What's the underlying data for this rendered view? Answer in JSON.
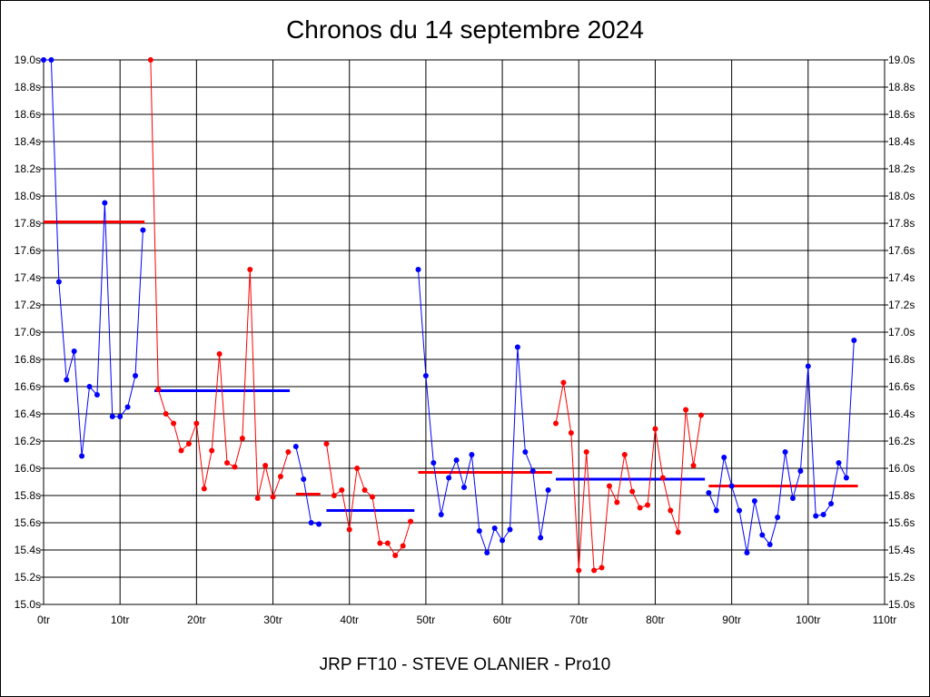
{
  "chart_data": {
    "type": "line",
    "title": "Chronos du 14 septembre 2024",
    "subtitle": "JRP FT10 - STEVE OLANIER - Pro10",
    "xlim": [
      0,
      110
    ],
    "ylim": [
      15.0,
      19.0
    ],
    "x_ticks": [
      {
        "value": 0,
        "label": "0tr"
      },
      {
        "value": 10,
        "label": "10tr"
      },
      {
        "value": 20,
        "label": "20tr"
      },
      {
        "value": 30,
        "label": "30tr"
      },
      {
        "value": 40,
        "label": "40tr"
      },
      {
        "value": 50,
        "label": "50tr"
      },
      {
        "value": 60,
        "label": "60tr"
      },
      {
        "value": 70,
        "label": "70tr"
      },
      {
        "value": 80,
        "label": "80tr"
      },
      {
        "value": 90,
        "label": "90tr"
      },
      {
        "value": 100,
        "label": "100tr"
      },
      {
        "value": 110,
        "label": "110tr"
      }
    ],
    "y_ticks": [
      {
        "value": 19.0,
        "label": "19.0s"
      },
      {
        "value": 18.8,
        "label": "18.8s"
      },
      {
        "value": 18.6,
        "label": "18.6s"
      },
      {
        "value": 18.4,
        "label": "18.4s"
      },
      {
        "value": 18.2,
        "label": "18.2s"
      },
      {
        "value": 18.0,
        "label": "18.0s"
      },
      {
        "value": 17.8,
        "label": "17.8s"
      },
      {
        "value": 17.6,
        "label": "17.6s"
      },
      {
        "value": 17.4,
        "label": "17.4s"
      },
      {
        "value": 17.2,
        "label": "17.2s"
      },
      {
        "value": 17.0,
        "label": "17.0s"
      },
      {
        "value": 16.8,
        "label": "16.8s"
      },
      {
        "value": 16.6,
        "label": "16.6s"
      },
      {
        "value": 16.4,
        "label": "16.4s"
      },
      {
        "value": 16.2,
        "label": "16.2s"
      },
      {
        "value": 16.0,
        "label": "16.0s"
      },
      {
        "value": 15.8,
        "label": "15.8s"
      },
      {
        "value": 15.6,
        "label": "15.6s"
      },
      {
        "value": 15.4,
        "label": "15.4s"
      },
      {
        "value": 15.2,
        "label": "15.2s"
      },
      {
        "value": 15.0,
        "label": "15.0s"
      }
    ],
    "grid": true,
    "series": [
      {
        "color": "#0000ff",
        "points": [
          [
            0,
            19.0
          ],
          [
            1,
            19.0
          ],
          [
            2,
            17.37
          ],
          [
            3,
            16.65
          ],
          [
            4,
            16.86
          ],
          [
            5,
            16.09
          ],
          [
            6,
            16.6
          ],
          [
            7,
            16.54
          ],
          [
            8,
            17.95
          ],
          [
            9,
            16.38
          ],
          [
            10,
            16.38
          ],
          [
            11,
            16.45
          ],
          [
            12,
            16.68
          ],
          [
            13,
            17.75
          ]
        ]
      },
      {
        "color": "#ff0000",
        "points": [
          [
            14,
            19.0
          ],
          [
            15,
            16.58
          ],
          [
            16,
            16.4
          ],
          [
            17,
            16.33
          ],
          [
            18,
            16.13
          ],
          [
            19,
            16.18
          ],
          [
            20,
            16.33
          ],
          [
            21,
            15.85
          ],
          [
            22,
            16.13
          ],
          [
            23,
            16.84
          ],
          [
            24,
            16.04
          ],
          [
            25,
            16.01
          ],
          [
            26,
            16.22
          ],
          [
            27,
            17.46
          ],
          [
            28,
            15.78
          ],
          [
            29,
            16.02
          ],
          [
            30,
            15.79
          ],
          [
            31,
            15.94
          ],
          [
            32,
            16.12
          ]
        ]
      },
      {
        "color": "#0000ff",
        "points": [
          [
            33,
            16.16
          ],
          [
            34,
            15.92
          ],
          [
            35,
            15.6
          ],
          [
            36,
            15.59
          ]
        ]
      },
      {
        "color": "#ff0000",
        "points": [
          [
            37,
            16.18
          ],
          [
            38,
            15.8
          ],
          [
            39,
            15.84
          ],
          [
            40,
            15.55
          ],
          [
            41,
            16.0
          ],
          [
            42,
            15.84
          ],
          [
            43,
            15.79
          ],
          [
            44,
            15.45
          ],
          [
            45,
            15.45
          ],
          [
            46,
            15.36
          ],
          [
            47,
            15.43
          ],
          [
            48,
            15.61
          ]
        ]
      },
      {
        "color": "#0000ff",
        "points": [
          [
            49,
            17.46
          ],
          [
            50,
            16.68
          ],
          [
            51,
            16.04
          ],
          [
            52,
            15.66
          ],
          [
            53,
            15.93
          ],
          [
            54,
            16.06
          ],
          [
            55,
            15.86
          ],
          [
            56,
            16.1
          ],
          [
            57,
            15.54
          ],
          [
            58,
            15.38
          ],
          [
            59,
            15.56
          ],
          [
            60,
            15.47
          ],
          [
            61,
            15.55
          ],
          [
            62,
            16.89
          ],
          [
            63,
            16.12
          ],
          [
            64,
            15.98
          ],
          [
            65,
            15.49
          ],
          [
            66,
            15.84
          ]
        ]
      },
      {
        "color": "#ff0000",
        "points": [
          [
            67,
            16.33
          ],
          [
            68,
            16.63
          ],
          [
            69,
            16.26
          ],
          [
            70,
            15.25
          ],
          [
            71,
            16.12
          ],
          [
            72,
            15.25
          ],
          [
            73,
            15.27
          ],
          [
            74,
            15.87
          ],
          [
            75,
            15.75
          ],
          [
            76,
            16.1
          ],
          [
            77,
            15.83
          ],
          [
            78,
            15.71
          ],
          [
            79,
            15.73
          ],
          [
            80,
            16.29
          ],
          [
            81,
            15.93
          ],
          [
            82,
            15.69
          ],
          [
            83,
            15.53
          ],
          [
            84,
            16.43
          ],
          [
            85,
            16.02
          ],
          [
            86,
            16.39
          ]
        ]
      },
      {
        "color": "#0000ff",
        "points": [
          [
            87,
            15.82
          ],
          [
            88,
            15.69
          ],
          [
            89,
            16.08
          ],
          [
            90,
            15.87
          ],
          [
            91,
            15.69
          ],
          [
            92,
            15.38
          ],
          [
            93,
            15.76
          ],
          [
            94,
            15.51
          ],
          [
            95,
            15.44
          ],
          [
            96,
            15.64
          ],
          [
            97,
            16.12
          ],
          [
            98,
            15.78
          ],
          [
            99,
            15.98
          ],
          [
            100,
            16.75
          ],
          [
            101,
            15.65
          ],
          [
            102,
            15.66
          ],
          [
            103,
            15.74
          ],
          [
            104,
            16.04
          ],
          [
            105,
            15.93
          ],
          [
            106,
            16.94
          ]
        ]
      }
    ],
    "averages": [
      {
        "color": "#ff0000",
        "x": [
          0,
          13.2
        ],
        "y": 17.81
      },
      {
        "color": "#0000ff",
        "x": [
          14.5,
          32.2
        ],
        "y": 16.57
      },
      {
        "color": "#ff0000",
        "x": [
          33,
          36.2
        ],
        "y": 15.81
      },
      {
        "color": "#0000ff",
        "x": [
          37,
          48.5
        ],
        "y": 15.69
      },
      {
        "color": "#ff0000",
        "x": [
          49,
          66.5
        ],
        "y": 15.97
      },
      {
        "color": "#0000ff",
        "x": [
          67,
          86.5
        ],
        "y": 15.92
      },
      {
        "color": "#ff0000",
        "x": [
          87,
          106.5
        ],
        "y": 15.87
      }
    ]
  }
}
